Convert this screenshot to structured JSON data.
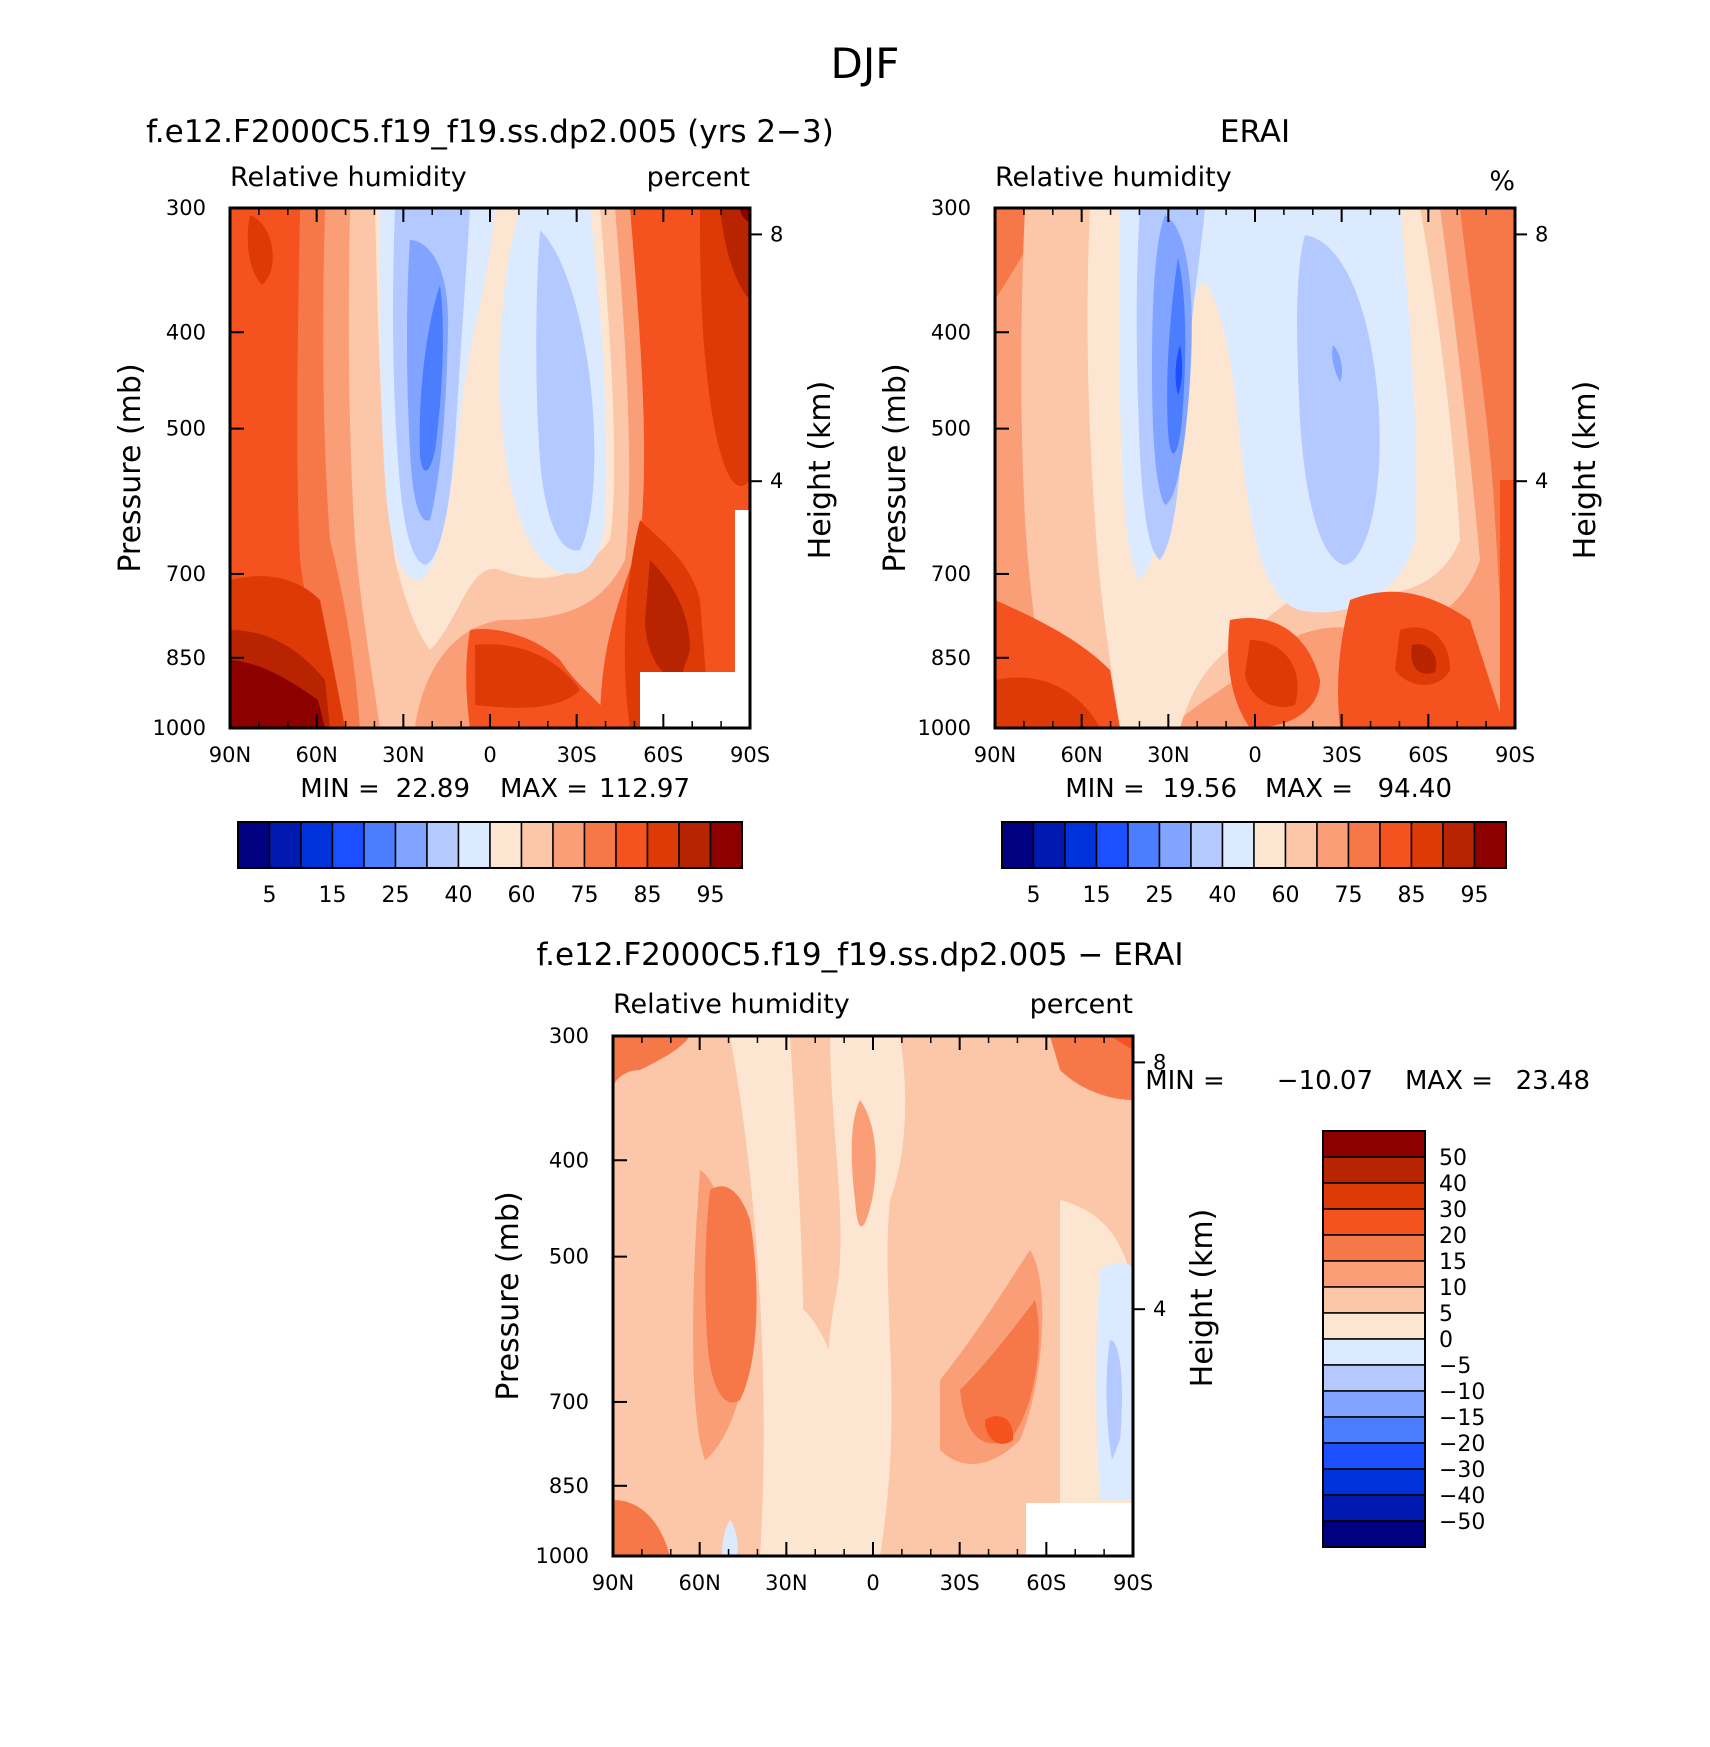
{
  "page": {
    "season_title": "DJF"
  },
  "scale_levels": [
    "5",
    "15",
    "25",
    "40",
    "60",
    "75",
    "85",
    "95"
  ],
  "diff_levels": [
    "50",
    "40",
    "30",
    "20",
    "15",
    "10",
    "5",
    "0",
    "−5",
    "−10",
    "−15",
    "−20",
    "−30",
    "−40",
    "−50"
  ],
  "colors": {
    "rh": [
      "#000080",
      "#0019b0",
      "#0032dc",
      "#1c4fff",
      "#4d7dff",
      "#80a4ff",
      "#b3c9ff",
      "#dceaff",
      "#fde6d1",
      "#fcc6a8",
      "#fa9e78",
      "#f67848",
      "#f4521e",
      "#de3a08",
      "#b82400",
      "#8c0000"
    ],
    "diff": [
      "#8c0000",
      "#b82400",
      "#de3a08",
      "#f4521e",
      "#f67848",
      "#fa9e78",
      "#fcc6a8",
      "#fde6d1",
      "#dceaff",
      "#b3c9ff",
      "#80a4ff",
      "#4d7dff",
      "#1c4fff",
      "#0032dc",
      "#0019b0",
      "#000080"
    ]
  },
  "chart_data": [
    {
      "type": "heatmap",
      "title": "f.e12.F2000C5.f19_f19.ss.dp2.005 (yrs 2−3)",
      "left_label": "Relative humidity",
      "right_label": "percent",
      "ylabel": "Pressure (mb)",
      "ylabel2": "Height (km)",
      "x_ticks": [
        "90N",
        "60N",
        "30N",
        "0",
        "30S",
        "60S",
        "90S"
      ],
      "y_ticks": [
        "300",
        "400",
        "500",
        "700",
        "850",
        "1000"
      ],
      "y2_ticks": [
        "8",
        "4"
      ],
      "min_label": "MIN =",
      "min_value": "22.89",
      "max_label": "MAX =",
      "max_value": "112.97",
      "colorbar_labels": [
        "5",
        "15",
        "25",
        "40",
        "60",
        "75",
        "85",
        "95"
      ],
      "xlim": [
        90,
        -90
      ],
      "ylim": [
        1000,
        300
      ],
      "log_pressure_axis": true
    },
    {
      "type": "heatmap",
      "title": "ERAI",
      "left_label": "Relative humidity",
      "right_label": "%",
      "ylabel": "Pressure (mb)",
      "ylabel2": "Height (km)",
      "x_ticks": [
        "90N",
        "60N",
        "30N",
        "0",
        "30S",
        "60S",
        "90S"
      ],
      "y_ticks": [
        "300",
        "400",
        "500",
        "700",
        "850",
        "1000"
      ],
      "y2_ticks": [
        "8",
        "4"
      ],
      "min_label": "MIN =",
      "min_value": "19.56",
      "max_label": "MAX =",
      "max_value": "94.40",
      "colorbar_labels": [
        "5",
        "15",
        "25",
        "40",
        "60",
        "75",
        "85",
        "95"
      ],
      "xlim": [
        90,
        -90
      ],
      "ylim": [
        1000,
        300
      ],
      "log_pressure_axis": true
    },
    {
      "type": "heatmap",
      "title": "f.e12.F2000C5.f19_f19.ss.dp2.005 − ERAI",
      "left_label": "Relative humidity",
      "right_label": "percent",
      "ylabel": "Pressure (mb)",
      "ylabel2": "Height (km)",
      "x_ticks": [
        "90N",
        "60N",
        "30N",
        "0",
        "30S",
        "60S",
        "90S"
      ],
      "y_ticks": [
        "300",
        "400",
        "500",
        "700",
        "850",
        "1000"
      ],
      "y2_ticks": [
        "8",
        "4"
      ],
      "min_label": "MIN =",
      "min_value": "−10.07",
      "max_label": "MAX =",
      "max_value": "23.48",
      "colorbar_labels": [
        "50",
        "40",
        "30",
        "20",
        "15",
        "10",
        "5",
        "0",
        "−5",
        "−10",
        "−15",
        "−20",
        "−30",
        "−40",
        "−50"
      ],
      "xlim": [
        90,
        -90
      ],
      "ylim": [
        1000,
        300
      ],
      "log_pressure_axis": true
    }
  ]
}
